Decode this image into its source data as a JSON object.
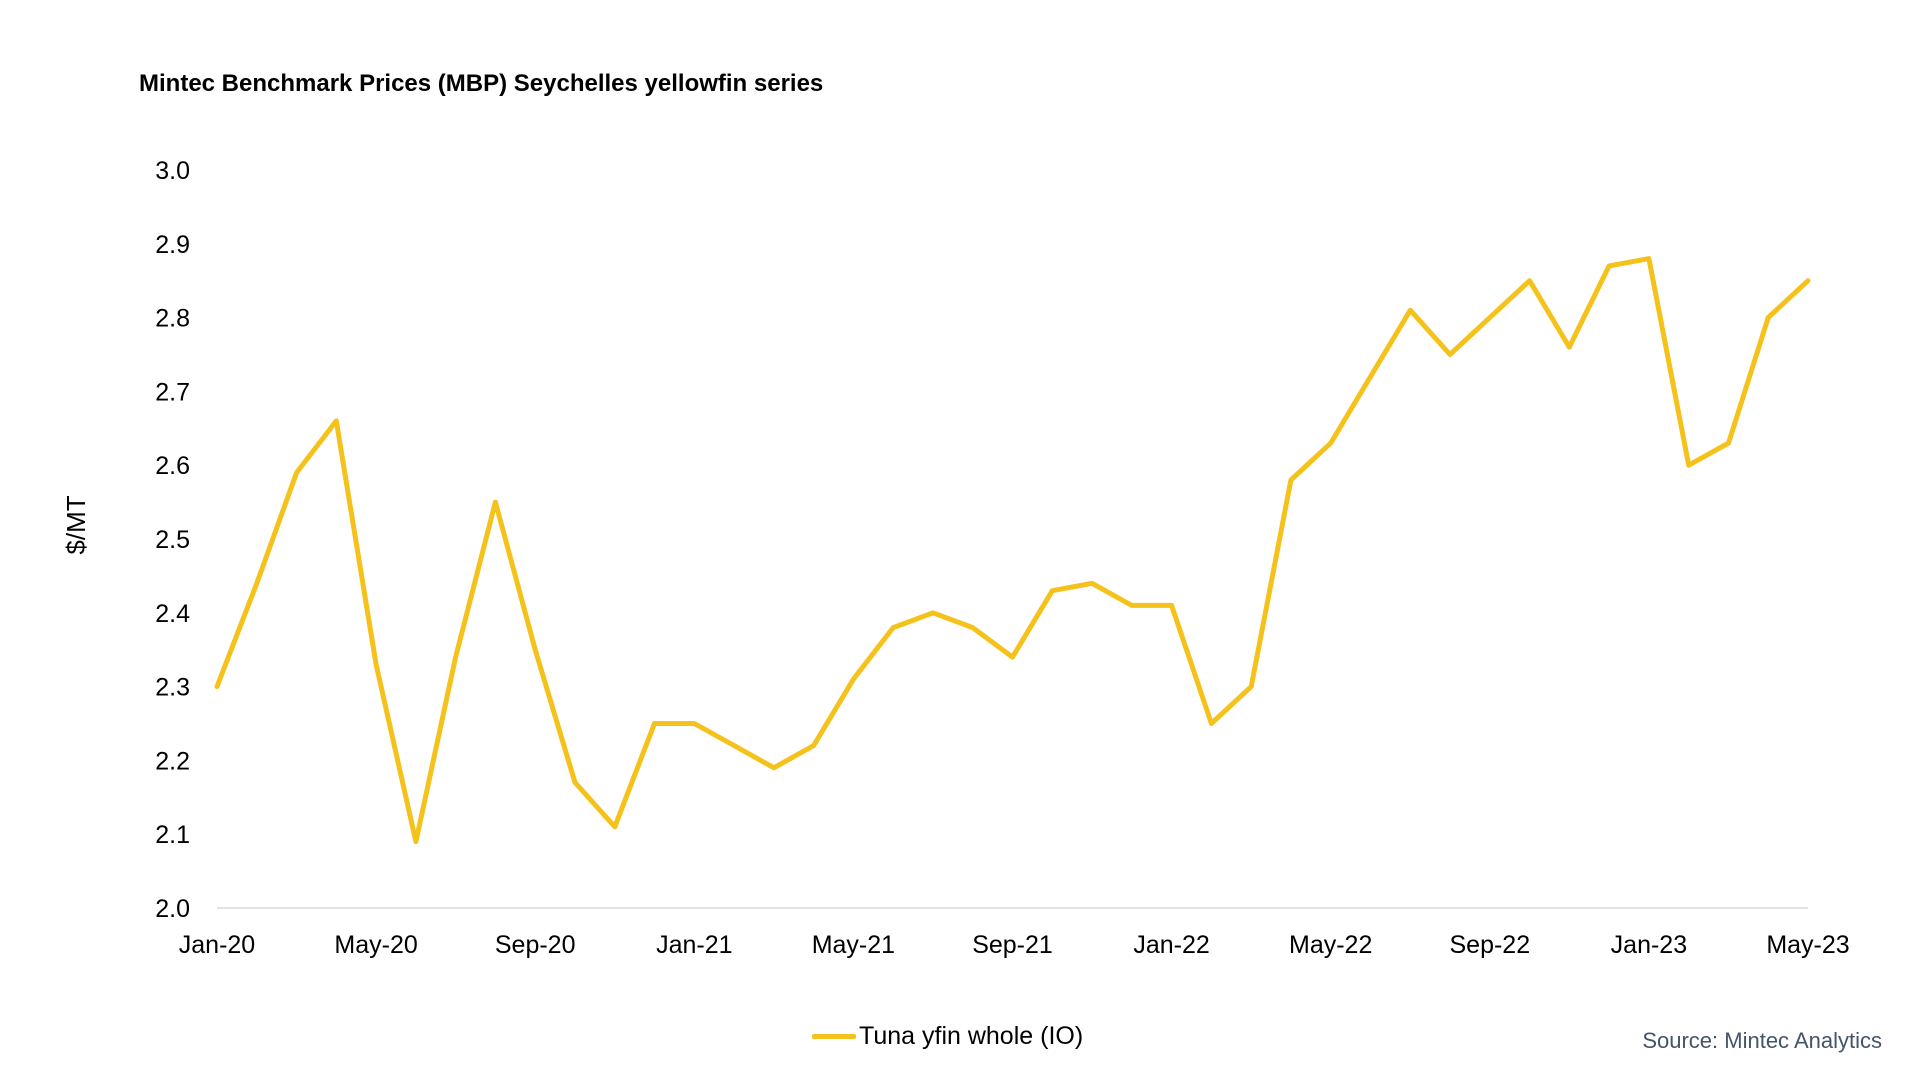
{
  "chart_data": {
    "type": "line",
    "title": "Mintec Benchmark Prices (MBP) Seychelles yellowfin series",
    "xlabel": "",
    "ylabel": "$/MT",
    "ylim": [
      2.0,
      3.0
    ],
    "yticks": [
      "2.0",
      "2.1",
      "2.2",
      "2.3",
      "2.4",
      "2.5",
      "2.6",
      "2.7",
      "2.8",
      "2.9",
      "3.0"
    ],
    "x": [
      "Jan-20",
      "Feb-20",
      "Mar-20",
      "Apr-20",
      "May-20",
      "Jun-20",
      "Jul-20",
      "Aug-20",
      "Sep-20",
      "Oct-20",
      "Nov-20",
      "Dec-20",
      "Jan-21",
      "Feb-21",
      "Mar-21",
      "Apr-21",
      "May-21",
      "Jun-21",
      "Jul-21",
      "Aug-21",
      "Sep-21",
      "Oct-21",
      "Nov-21",
      "Dec-21",
      "Jan-22",
      "Feb-22",
      "Mar-22",
      "Apr-22",
      "May-22",
      "Jun-22",
      "Jul-22",
      "Aug-22",
      "Sep-22",
      "Oct-22",
      "Nov-22",
      "Dec-22",
      "Jan-23",
      "Feb-23",
      "Mar-23",
      "Apr-23",
      "May-23"
    ],
    "xtick_labels": [
      "Jan-20",
      "May-20",
      "Sep-20",
      "Jan-21",
      "May-21",
      "Sep-21",
      "Jan-22",
      "May-22",
      "Sep-22",
      "Jan-23",
      "May-23"
    ],
    "series": [
      {
        "name": "Tuna yfin whole (IO)",
        "color": "#f5c21b",
        "values": [
          2.3,
          2.44,
          2.59,
          2.66,
          2.33,
          2.09,
          2.34,
          2.55,
          2.35,
          2.17,
          2.11,
          2.25,
          2.25,
          2.22,
          2.19,
          2.22,
          2.31,
          2.38,
          2.4,
          2.38,
          2.34,
          2.43,
          2.44,
          2.41,
          2.41,
          2.25,
          2.3,
          2.58,
          2.63,
          2.72,
          2.81,
          2.75,
          2.8,
          2.85,
          2.76,
          2.87,
          2.88,
          2.6,
          2.63,
          2.8,
          2.85
        ]
      }
    ],
    "grid": false,
    "legend_position": "bottom-center"
  },
  "source": "Source: Mintec Analytics"
}
